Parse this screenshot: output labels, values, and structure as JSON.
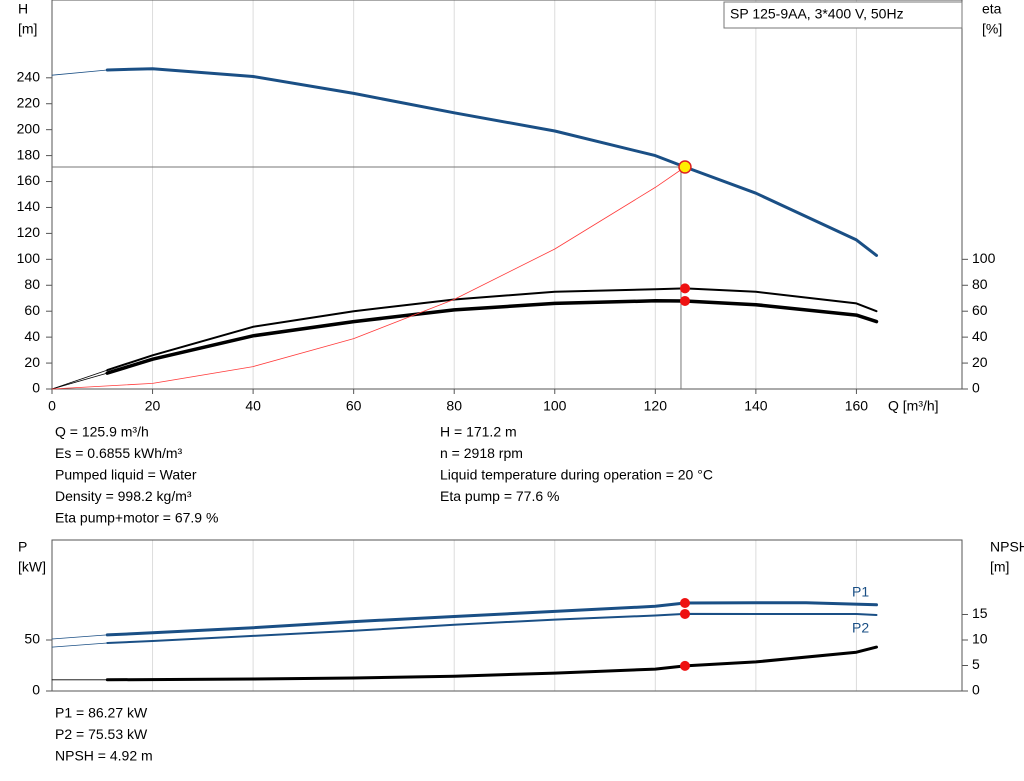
{
  "chart_data": [
    {
      "type": "line",
      "title": "SP 125-9AA, 3*400 V, 50Hz",
      "ylabel": [
        "H",
        "[m]"
      ],
      "y2label": [
        "eta",
        "[%]"
      ],
      "xlabel": "Q [m³/h]",
      "xlim": [
        0,
        181
      ],
      "xticks": [
        0,
        20,
        40,
        60,
        80,
        100,
        120,
        140,
        160
      ],
      "ylim": [
        0,
        300
      ],
      "yticks": [
        0,
        20,
        40,
        60,
        80,
        100,
        120,
        140,
        160,
        180,
        200,
        220,
        240
      ],
      "y2lim": [
        0,
        300
      ],
      "y2ticks": [
        0,
        20,
        40,
        60,
        80,
        100
      ],
      "grid": "x",
      "series": [
        {
          "color": "#1a4f85",
          "line_width": 3,
          "x": [
            11,
            20,
            40,
            60,
            80,
            100,
            120,
            125.9,
            140,
            160,
            164
          ],
          "values": [
            246,
            247,
            241,
            228,
            213,
            199,
            180,
            171.2,
            151,
            115,
            103
          ]
        },
        {
          "color": "#1a4f85",
          "line_width": 0.8,
          "x": [
            0,
            11
          ],
          "values": [
            242,
            246
          ]
        },
        {
          "color": "#000000",
          "line_width": 2,
          "axis": "y2",
          "x": [
            11,
            20,
            40,
            60,
            80,
            100,
            120,
            125.9,
            140,
            160,
            164
          ],
          "values": [
            14.6,
            26,
            48,
            60,
            69,
            75,
            77,
            77.6,
            75,
            66,
            60
          ]
        },
        {
          "color": "#000000",
          "line_width": 3.5,
          "axis": "y2",
          "x": [
            11,
            20,
            40,
            60,
            80,
            100,
            120,
            125.9,
            140,
            160,
            164
          ],
          "values": [
            12.3,
            23,
            41,
            52,
            61,
            66,
            68,
            67.9,
            65,
            57,
            52
          ]
        },
        {
          "color": "#000000",
          "line_width": 0.8,
          "axis": "y2",
          "x": [
            0,
            11
          ],
          "values": [
            0,
            14.6
          ]
        },
        {
          "color": "#000000",
          "line_width": 0.8,
          "axis": "y2",
          "x": [
            0,
            11
          ],
          "values": [
            0,
            12.3
          ]
        },
        {
          "color": "#ff3b3b",
          "line_width": 0.8,
          "x": [
            0,
            20,
            40,
            60,
            80,
            100,
            120,
            125.9
          ],
          "values": [
            0,
            4.3,
            17.3,
            38.9,
            69.1,
            108,
            155.5,
            171.2
          ]
        }
      ],
      "duty_points": [
        {
          "x": 125.9,
          "y": 171.2,
          "color": "#ffee00"
        },
        {
          "x": 125.9,
          "y": 77.6,
          "axis": "y2",
          "color": "#ee1111"
        },
        {
          "x": 125.9,
          "y": 67.9,
          "axis": "y2",
          "color": "#ee1111"
        }
      ],
      "readouts": [
        [
          "Q = 125.9 m³/h",
          "Es = 0.6855 kWh/m³",
          "Pumped liquid = Water",
          "Density = 998.2 kg/m³",
          "Eta pump+motor = 67.9 %"
        ],
        [
          "H = 171.2 m",
          "n = 2918 rpm",
          "Liquid temperature during operation = 20 °C",
          "Eta pump = 77.6 %"
        ]
      ]
    },
    {
      "type": "line",
      "ylabel": [
        "P",
        "[kW]"
      ],
      "y2label": [
        "NPSH",
        "[m]"
      ],
      "xlim": [
        0,
        181
      ],
      "ylim": [
        0,
        148
      ],
      "yticks": [
        0,
        50
      ],
      "y2lim": [
        0,
        29.6
      ],
      "y2ticks": [
        0,
        5,
        10,
        15
      ],
      "grid": "x",
      "series": [
        {
          "name": "P1",
          "color": "#1a4f85",
          "line_width": 3,
          "x": [
            11,
            20,
            40,
            60,
            80,
            100,
            120,
            125.9,
            140,
            150,
            164
          ],
          "values": [
            55,
            57,
            62,
            68,
            73,
            78,
            83,
            86.27,
            86.5,
            86.5,
            84.5
          ]
        },
        {
          "name": "P2",
          "color": "#1a4f85",
          "line_width": 2,
          "x": [
            11,
            20,
            40,
            60,
            80,
            100,
            120,
            125.9,
            140,
            160,
            164
          ],
          "values": [
            47,
            49,
            54,
            59,
            65,
            70,
            74,
            75.53,
            75.5,
            75.5,
            74.5
          ]
        },
        {
          "color": "#1a4f85",
          "line_width": 0.8,
          "x": [
            0,
            11
          ],
          "values": [
            51,
            55
          ]
        },
        {
          "color": "#1a4f85",
          "line_width": 0.8,
          "x": [
            0,
            11
          ],
          "values": [
            43,
            47
          ]
        },
        {
          "color": "#000000",
          "line_width": 3,
          "axis": "y2",
          "x": [
            11,
            40,
            60,
            80,
            100,
            120,
            125.9,
            140,
            160,
            164
          ],
          "values": [
            2.2,
            2.35,
            2.55,
            2.9,
            3.5,
            4.3,
            4.92,
            5.7,
            7.6,
            8.6
          ]
        },
        {
          "color": "#000000",
          "line_width": 0.8,
          "axis": "y2",
          "x": [
            0,
            11
          ],
          "values": [
            2.2,
            2.2
          ]
        }
      ],
      "duty_points": [
        {
          "x": 125.9,
          "y": 86.27,
          "color": "#ee1111"
        },
        {
          "x": 125.9,
          "y": 75.53,
          "color": "#ee1111"
        },
        {
          "x": 125.9,
          "y": 4.92,
          "axis": "y2",
          "color": "#ee1111"
        }
      ],
      "readouts": [
        [
          "P1 = 86.27 kW",
          "P2 = 75.53 kW",
          "NPSH = 4.92 m"
        ]
      ]
    }
  ]
}
